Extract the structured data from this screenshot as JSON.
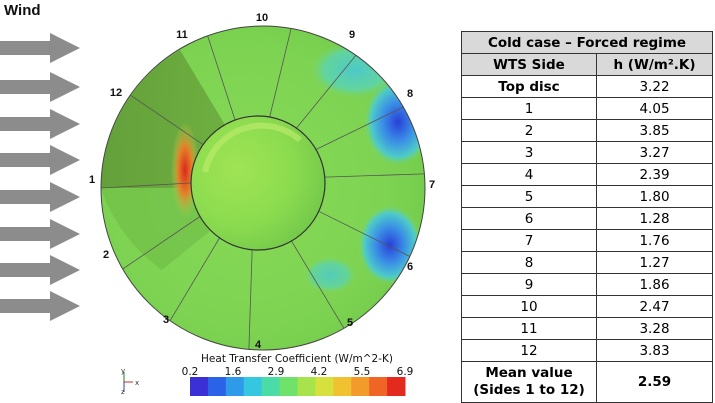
{
  "wind_label": "Wind",
  "side_labels": [
    "1",
    "2",
    "3",
    "4",
    "5",
    "6",
    "7",
    "8",
    "9",
    "10",
    "11",
    "12"
  ],
  "colorbar": {
    "title": "Heat Transfer Coefficient (W/m^2-K)",
    "ticks": [
      "0.2",
      "1.6",
      "2.9",
      "4.2",
      "5.5",
      "6.9"
    ],
    "colors": [
      "#3b2fd6",
      "#2b63e8",
      "#2e9be8",
      "#35c6e0",
      "#49dca6",
      "#6fe26b",
      "#a7e34a",
      "#d6e13e",
      "#f0c232",
      "#f29a2a",
      "#ef6526",
      "#e32a1f"
    ]
  },
  "axis_triad": {
    "y": "y",
    "x": "x",
    "z": "z"
  },
  "table": {
    "title": "Cold case – Forced regime",
    "col_headers": [
      "WTS Side",
      "h (W/m².K)"
    ],
    "rows": [
      {
        "side": "Top disc",
        "h": "3.22"
      },
      {
        "side": "1",
        "h": "4.05"
      },
      {
        "side": "2",
        "h": "3.85"
      },
      {
        "side": "3",
        "h": "3.27"
      },
      {
        "side": "4",
        "h": "2.39"
      },
      {
        "side": "5",
        "h": "1.80"
      },
      {
        "side": "6",
        "h": "1.28"
      },
      {
        "side": "7",
        "h": "1.76"
      },
      {
        "side": "8",
        "h": "1.27"
      },
      {
        "side": "9",
        "h": "1.86"
      },
      {
        "side": "10",
        "h": "2.47"
      },
      {
        "side": "11",
        "h": "3.28"
      },
      {
        "side": "12",
        "h": "3.83"
      }
    ],
    "mean_label_line1": "Mean value",
    "mean_label_line2": "(Sides 1 to 12)",
    "mean_value": "2.59"
  },
  "colors": {
    "arrow": "#8c8c8c",
    "base_green": "#79d34f",
    "dark_green": "#5e9a35",
    "hot": "#e8421f",
    "cold": "#2f4fe0",
    "header_fill": "#d9d9d9"
  }
}
